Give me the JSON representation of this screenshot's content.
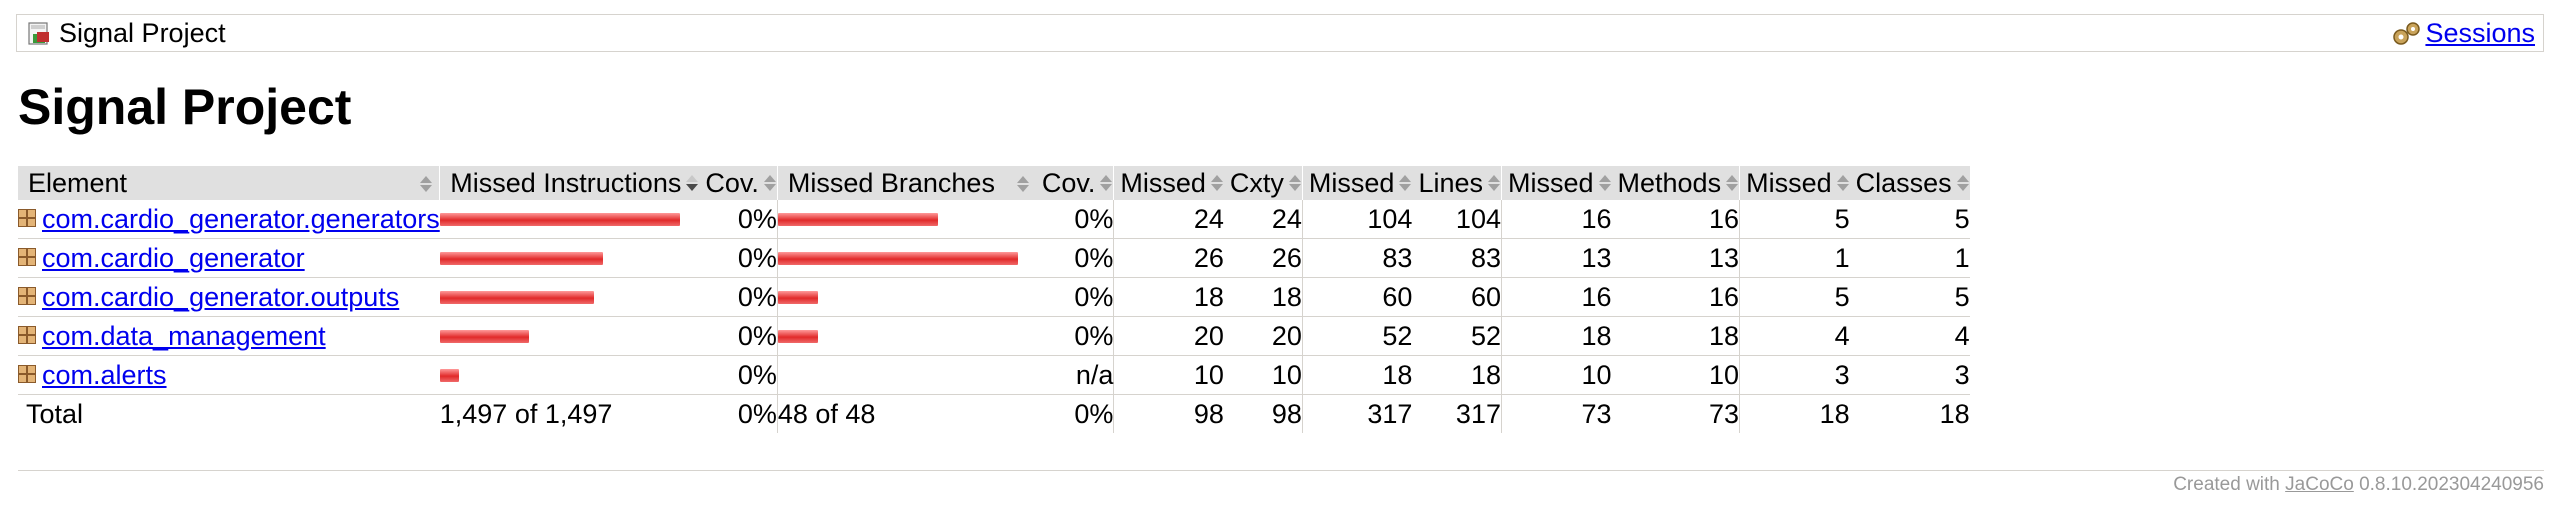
{
  "breadcrumb": {
    "title": "Signal Project",
    "sessions_link": "Sessions",
    "title_icon": "report-icon",
    "sessions_icon": "gears-icon"
  },
  "page_title": "Signal Project",
  "table": {
    "headers": {
      "element": "Element",
      "missed_instructions": "Missed Instructions",
      "cov_instr": "Cov.",
      "missed_branches": "Missed Branches",
      "cov_branch": "Cov.",
      "missed_cxty": "Missed",
      "cxty": "Cxty",
      "missed_lines": "Missed",
      "lines": "Lines",
      "missed_methods": "Missed",
      "methods": "Methods",
      "missed_classes": "Missed",
      "classes": "Classes"
    },
    "rows": [
      {
        "name": "com.cardio_generator.generators",
        "instr_bar": 1.0,
        "cov_instr": "0%",
        "branch_bar": 0.667,
        "cov_branch": "0%",
        "missed_cxty": "24",
        "cxty": "24",
        "missed_lines": "104",
        "lines": "104",
        "missed_methods": "16",
        "methods": "16",
        "missed_classes": "5",
        "classes": "5"
      },
      {
        "name": "com.cardio_generator",
        "instr_bar": 0.68,
        "cov_instr": "0%",
        "branch_bar": 1.0,
        "cov_branch": "0%",
        "missed_cxty": "26",
        "cxty": "26",
        "missed_lines": "83",
        "lines": "83",
        "missed_methods": "13",
        "methods": "13",
        "missed_classes": "1",
        "classes": "1"
      },
      {
        "name": "com.cardio_generator.outputs",
        "instr_bar": 0.64,
        "cov_instr": "0%",
        "branch_bar": 0.167,
        "cov_branch": "0%",
        "missed_cxty": "18",
        "cxty": "18",
        "missed_lines": "60",
        "lines": "60",
        "missed_methods": "16",
        "methods": "16",
        "missed_classes": "5",
        "classes": "5"
      },
      {
        "name": "com.data_management",
        "instr_bar": 0.37,
        "cov_instr": "0%",
        "branch_bar": 0.167,
        "cov_branch": "0%",
        "missed_cxty": "20",
        "cxty": "20",
        "missed_lines": "52",
        "lines": "52",
        "missed_methods": "18",
        "methods": "18",
        "missed_classes": "4",
        "classes": "4"
      },
      {
        "name": "com.alerts",
        "instr_bar": 0.08,
        "cov_instr": "0%",
        "branch_bar": 0,
        "cov_branch": "n/a",
        "missed_cxty": "10",
        "cxty": "10",
        "missed_lines": "18",
        "lines": "18",
        "missed_methods": "10",
        "methods": "10",
        "missed_classes": "3",
        "classes": "3"
      }
    ],
    "total": {
      "label": "Total",
      "instructions": "1,497 of 1,497",
      "cov_instr": "0%",
      "branches": "48 of 48",
      "cov_branch": "0%",
      "missed_cxty": "98",
      "cxty": "98",
      "missed_lines": "317",
      "lines": "317",
      "missed_methods": "73",
      "methods": "73",
      "missed_classes": "18",
      "classes": "18"
    }
  },
  "footer": {
    "prefix": "Created with ",
    "link": "JaCoCo",
    "version": " 0.8.10.202304240956"
  },
  "colors": {
    "bar_red": "#e12a2a",
    "header_bg": "#e0e0e0",
    "link": "#0000ee",
    "footer_text": "#999999"
  }
}
